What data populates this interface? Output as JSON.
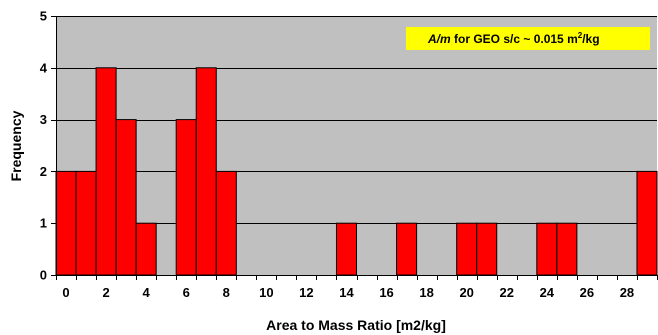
{
  "chart_data": {
    "type": "bar",
    "xlabel": "Area to Mass Ratio [m2/kg]",
    "ylabel": "Frequency",
    "ylim": [
      0,
      5
    ],
    "yticks": [
      0,
      1,
      2,
      3,
      4,
      5
    ],
    "xticks": [
      0,
      2,
      4,
      6,
      8,
      10,
      12,
      14,
      16,
      18,
      20,
      22,
      24,
      26,
      28
    ],
    "categories": [
      0,
      1,
      2,
      3,
      4,
      5,
      6,
      7,
      8,
      9,
      10,
      11,
      12,
      13,
      14,
      15,
      16,
      17,
      18,
      19,
      20,
      21,
      22,
      23,
      24,
      25,
      26,
      27,
      28,
      29
    ],
    "values": [
      2,
      2,
      4,
      3,
      1,
      0,
      3,
      4,
      2,
      0,
      0,
      0,
      0,
      0,
      1,
      0,
      0,
      1,
      0,
      0,
      1,
      1,
      0,
      0,
      1,
      1,
      0,
      0,
      0,
      2
    ],
    "grid": "horizontal",
    "colors": {
      "plot_background": "#c0c0c0",
      "bar_fill": "#ff0000",
      "bar_stroke": "#000000",
      "annotation_background": "#ffff00"
    },
    "annotation": {
      "italic": "A/m",
      "text": " for GEO s/c ~ 0.015 m",
      "superscript": "2",
      "suffix": "/kg",
      "position": "top-right"
    }
  }
}
